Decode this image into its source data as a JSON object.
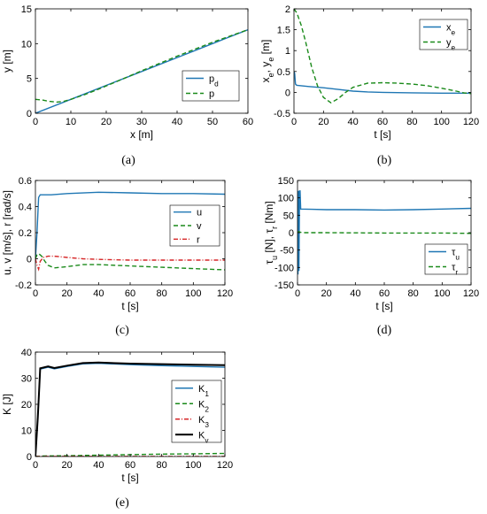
{
  "chart_data": [
    {
      "id": "a",
      "type": "line",
      "caption": "(a)",
      "xlabel": "x [m]",
      "ylabel": "y [m]",
      "xlim": [
        0,
        60
      ],
      "ylim": [
        0,
        15
      ],
      "xticks": [
        0,
        10,
        20,
        30,
        40,
        50,
        60
      ],
      "yticks": [
        0,
        5,
        10,
        15
      ],
      "grid": false,
      "legend_position": "bottom-right",
      "series": [
        {
          "name": "p_d",
          "color": "#1f77b4",
          "style": "solid",
          "x": [
            0,
            10,
            20,
            30,
            40,
            50,
            60
          ],
          "y": [
            0,
            2,
            4,
            6,
            8,
            10,
            12
          ]
        },
        {
          "name": "p",
          "color": "#1a8a1a",
          "style": "dashed",
          "x": [
            0,
            2,
            4,
            6,
            8,
            10,
            14,
            18,
            25,
            30,
            40,
            50,
            60
          ],
          "y": [
            2.0,
            1.9,
            1.7,
            1.6,
            1.7,
            2.0,
            2.7,
            3.5,
            5.0,
            6.1,
            8.2,
            10.2,
            12.0
          ]
        }
      ]
    },
    {
      "id": "b",
      "type": "line",
      "caption": "(b)",
      "xlabel": "t [s]",
      "ylabel": "x_e, y_e [m]",
      "xlim": [
        0,
        120
      ],
      "ylim": [
        -0.5,
        2
      ],
      "xticks": [
        0,
        20,
        40,
        60,
        80,
        100,
        120
      ],
      "yticks": [
        -0.5,
        0,
        0.5,
        1,
        1.5,
        2
      ],
      "grid": false,
      "legend_position": "top-right",
      "series": [
        {
          "name": "x_e",
          "color": "#1f77b4",
          "style": "solid",
          "x": [
            0,
            0.5,
            1,
            1.5,
            2,
            10,
            20,
            30,
            40,
            50,
            60,
            80,
            100,
            120
          ],
          "y": [
            0.5,
            0.45,
            0.2,
            0.18,
            0.17,
            0.14,
            0.11,
            0.07,
            0.03,
            0.01,
            0.0,
            -0.01,
            -0.02,
            -0.02
          ]
        },
        {
          "name": "y_e",
          "color": "#1a8a1a",
          "style": "dashed",
          "x": [
            0,
            2,
            5,
            8,
            12,
            16,
            20,
            25,
            30,
            35,
            40,
            50,
            60,
            70,
            80,
            90,
            100,
            110,
            115,
            120
          ],
          "y": [
            2.0,
            1.9,
            1.6,
            1.2,
            0.6,
            0.15,
            -0.12,
            -0.25,
            -0.15,
            0.0,
            0.12,
            0.22,
            0.23,
            0.22,
            0.2,
            0.16,
            0.1,
            0.03,
            -0.01,
            -0.03
          ]
        }
      ]
    },
    {
      "id": "c",
      "type": "line",
      "caption": "(c)",
      "xlabel": "t [s]",
      "ylabel": "u, v [m/s], r [rad/s]",
      "xlim": [
        0,
        120
      ],
      "ylim": [
        -0.2,
        0.6
      ],
      "xticks": [
        0,
        20,
        40,
        60,
        80,
        100,
        120
      ],
      "yticks": [
        -0.2,
        0,
        0.2,
        0.4,
        0.6
      ],
      "grid": false,
      "legend_position": "center-right",
      "series": [
        {
          "name": "u",
          "color": "#1f77b4",
          "style": "solid",
          "x": [
            0,
            1,
            2,
            3,
            5,
            10,
            20,
            40,
            60,
            80,
            100,
            120
          ],
          "y": [
            0.0,
            0.2,
            0.47,
            0.49,
            0.49,
            0.49,
            0.5,
            0.51,
            0.505,
            0.5,
            0.5,
            0.495
          ]
        },
        {
          "name": "v",
          "color": "#1a8a1a",
          "style": "dashed",
          "x": [
            0,
            1,
            2,
            4,
            6,
            8,
            12,
            20,
            30,
            40,
            60,
            80,
            100,
            120
          ],
          "y": [
            0.0,
            0.03,
            0.04,
            0.02,
            -0.02,
            -0.05,
            -0.07,
            -0.06,
            -0.045,
            -0.045,
            -0.055,
            -0.065,
            -0.075,
            -0.085
          ]
        },
        {
          "name": "r",
          "color": "#d62728",
          "style": "dashdot",
          "x": [
            0,
            1,
            2,
            3,
            5,
            8,
            12,
            20,
            30,
            40,
            60,
            80,
            100,
            120
          ],
          "y": [
            0.0,
            -0.05,
            -0.08,
            -0.02,
            0.01,
            0.02,
            0.02,
            0.01,
            0.0,
            -0.005,
            -0.01,
            -0.01,
            -0.01,
            -0.01
          ]
        }
      ]
    },
    {
      "id": "d",
      "type": "line",
      "caption": "(d)",
      "xlabel": "t [s]",
      "ylabel": "τ_u [N], τ_r [Nm]",
      "xlim": [
        0,
        120
      ],
      "ylim": [
        -150,
        150
      ],
      "xticks": [
        0,
        20,
        40,
        60,
        80,
        100,
        120
      ],
      "yticks": [
        -150,
        -100,
        -50,
        0,
        50,
        100,
        150
      ],
      "grid": false,
      "legend_position": "bottom-right",
      "series": [
        {
          "name": "τ_u",
          "color": "#1f77b4",
          "style": "solid",
          "x": [
            0,
            0.3,
            0.6,
            1.0,
            1.4,
            1.8,
            2.2,
            10,
            20,
            40,
            60,
            80,
            100,
            120
          ],
          "y": [
            120,
            -120,
            120,
            -110,
            120,
            120,
            68,
            67,
            66,
            66,
            65,
            66,
            68,
            70
          ]
        },
        {
          "name": "τ_r",
          "color": "#1a8a1a",
          "style": "dashed",
          "x": [
            0,
            1,
            2,
            5,
            20,
            60,
            100,
            120
          ],
          "y": [
            0,
            3,
            1,
            0,
            0,
            -1,
            -1,
            -2
          ]
        }
      ]
    },
    {
      "id": "e",
      "type": "line",
      "caption": "(e)",
      "xlabel": "t [s]",
      "ylabel": "K [J]",
      "xlim": [
        0,
        120
      ],
      "ylim": [
        0,
        40
      ],
      "xticks": [
        0,
        20,
        40,
        60,
        80,
        100,
        120
      ],
      "yticks": [
        0,
        10,
        20,
        30,
        40
      ],
      "grid": false,
      "legend_position": "center-right",
      "series": [
        {
          "name": "K_1",
          "color": "#1f77b4",
          "style": "solid",
          "x": [
            0,
            1.5,
            3,
            8,
            12,
            20,
            30,
            40,
            60,
            80,
            100,
            120
          ],
          "y": [
            0,
            15,
            33.5,
            34.2,
            33.6,
            34.5,
            35.5,
            35.7,
            35.2,
            34.8,
            34.5,
            34.2
          ]
        },
        {
          "name": "K_2",
          "color": "#1a8a1a",
          "style": "dashed",
          "x": [
            0,
            5,
            20,
            40,
            60,
            80,
            100,
            120
          ],
          "y": [
            0,
            0.2,
            0.3,
            0.5,
            0.7,
            0.9,
            1.0,
            1.2
          ]
        },
        {
          "name": "K_3",
          "color": "#d62728",
          "style": "dashdot",
          "x": [
            0,
            5,
            20,
            60,
            120
          ],
          "y": [
            0,
            0.05,
            0.05,
            0.05,
            0.05
          ]
        },
        {
          "name": "K_v",
          "color": "#000000",
          "style": "solid",
          "x": [
            0,
            1.5,
            3,
            8,
            12,
            20,
            30,
            40,
            60,
            80,
            100,
            120
          ],
          "y": [
            0,
            15,
            33.8,
            34.5,
            33.9,
            34.8,
            35.8,
            36.0,
            35.6,
            35.4,
            35.2,
            35.0
          ]
        }
      ]
    }
  ]
}
